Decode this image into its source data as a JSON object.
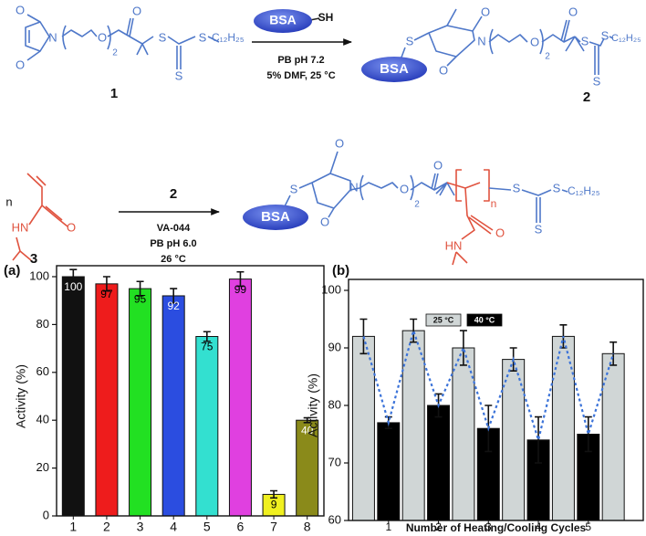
{
  "scheme": {
    "labels": [
      "O",
      "N",
      "O",
      "O",
      "2",
      "O",
      "S",
      "S",
      "S",
      "C₁₂H₂₅",
      "1",
      "BSA",
      "SH",
      "PB pH 7.2",
      "5% DMF, 25 °C",
      "S",
      "O",
      "N",
      "O",
      "BSA",
      "O",
      "2",
      "O",
      "S",
      "S",
      "S",
      "C₁₂H₂₅",
      "2",
      "n",
      "HN",
      "O",
      "3",
      "2",
      "VA-044",
      "PB pH 6.0",
      "26 °C",
      "BSA",
      "S",
      "O",
      "N",
      "O",
      "O",
      "2",
      "O",
      "n",
      "S",
      "S",
      "S",
      "C₁₂H₂₅",
      "HN",
      "O"
    ]
  },
  "chart_data": [
    {
      "type": "bar",
      "panel": "(a)",
      "ylabel": "Activity (%)",
      "categories": [
        "1",
        "2",
        "3",
        "4",
        "5",
        "6",
        "7",
        "8"
      ],
      "values": [
        100,
        97,
        95,
        92,
        75,
        99,
        9,
        40
      ],
      "errors": [
        3,
        3,
        3,
        3,
        2,
        3,
        1.5,
        1
      ],
      "colors": [
        "#111111",
        "#ee1c1c",
        "#22e022",
        "#2b4de0",
        "#33e0d0",
        "#e040e0",
        "#f0f020",
        "#8a8a1a"
      ],
      "label_colors": [
        "#ffffff",
        "#000000",
        "#000000",
        "#ffffff",
        "#000000",
        "#000000",
        "#000000",
        "#ffffff"
      ],
      "ylim": [
        0,
        100
      ],
      "yticks": [
        0,
        20,
        40,
        60,
        80,
        100
      ]
    },
    {
      "type": "bar",
      "panel": "(b)",
      "ylabel": "Activity (%)",
      "xlabel": "Number of Heating/Cooling Cycles",
      "xlim": [
        0.2,
        6.1
      ],
      "xticks": [
        1,
        2,
        3,
        4,
        5
      ],
      "series": [
        {
          "name": "25 °C",
          "color": "#d0d6d6",
          "x": [
            0.5,
            1.5,
            2.5,
            3.5,
            4.5,
            5.5
          ],
          "values": [
            92,
            93,
            90,
            88,
            92,
            89
          ],
          "errors": [
            3,
            2,
            3,
            2,
            2,
            2
          ]
        },
        {
          "name": "40 °C",
          "color": "#000000",
          "x": [
            1,
            2,
            3,
            4,
            5
          ],
          "values": [
            77,
            80,
            76,
            74,
            75
          ],
          "errors": [
            1,
            2,
            4,
            4,
            3
          ]
        }
      ],
      "line_color": "#3b73d9",
      "ylim": [
        60,
        100
      ],
      "yticks": [
        60,
        70,
        80,
        90,
        100
      ]
    }
  ]
}
